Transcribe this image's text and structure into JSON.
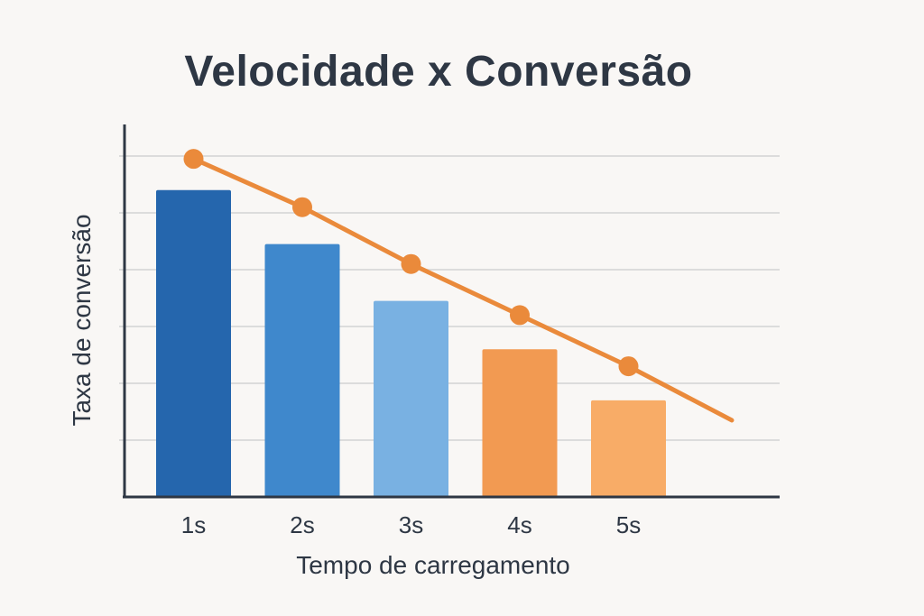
{
  "chart_data": {
    "type": "bar",
    "title": "Velocidade x Conversão",
    "xlabel": "Tempo de carregamento",
    "ylabel": "Taxa de conversão",
    "categories": [
      "1s",
      "2s",
      "3s",
      "4s",
      "5s"
    ],
    "ylim": [
      0,
      6
    ],
    "grid": true,
    "y_ticks_labeled": false,
    "series": [
      {
        "type": "bar",
        "values": [
          5.4,
          4.45,
          3.45,
          2.6,
          1.7
        ],
        "colors": [
          "#2566ad",
          "#3f88cc",
          "#79b1e2",
          "#f29a52",
          "#f8ac67"
        ]
      },
      {
        "type": "line",
        "values": [
          5.95,
          5.1,
          4.1,
          3.2,
          2.3
        ],
        "extend_to": 1.35,
        "color": "#ea8a3b"
      }
    ]
  }
}
